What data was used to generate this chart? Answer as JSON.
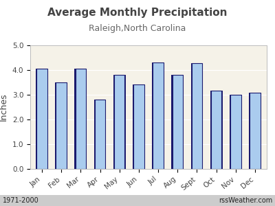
{
  "title": "Average Monthly Precipitation",
  "subtitle": "Raleigh,North Carolina",
  "ylabel": "Inches",
  "months": [
    "Jan",
    "Feb",
    "Mar",
    "Apr",
    "May",
    "Jun",
    "Jul",
    "Aug",
    "Sept",
    "Oct",
    "Nov",
    "Dec"
  ],
  "values": [
    4.05,
    3.5,
    4.05,
    2.8,
    3.8,
    3.42,
    4.3,
    3.8,
    4.28,
    3.18,
    3.0,
    3.07
  ],
  "ylim": [
    0.0,
    5.0
  ],
  "yticks": [
    0.0,
    1.0,
    2.0,
    3.0,
    4.0,
    5.0
  ],
  "bar_face_color": "#aaccee",
  "bar_edge_color": "#1a1a6e",
  "bg_plot_color": "#f5f2e8",
  "bg_figure_color": "#ffffff",
  "grid_color": "#ffffff",
  "footer_left": "1971-2000",
  "footer_right": "rssWeather.com",
  "title_fontsize": 11,
  "subtitle_fontsize": 9,
  "ylabel_fontsize": 9,
  "tick_fontsize": 7.5,
  "footer_fontsize": 7
}
